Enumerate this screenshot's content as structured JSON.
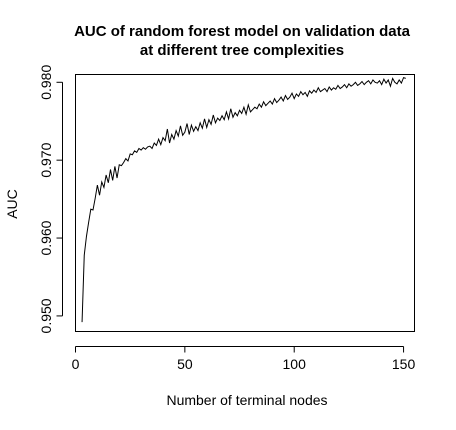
{
  "chart_data": {
    "type": "line",
    "title_lines": [
      "AUC of random forest model on validation data",
      "at different tree complexities"
    ],
    "xlabel": "Number of terminal nodes",
    "ylabel": "AUC",
    "xlim": [
      0,
      155
    ],
    "ylim": [
      0.948,
      0.981
    ],
    "x_ticks": [
      0,
      50,
      100,
      150
    ],
    "y_ticks": [
      0.95,
      0.96,
      0.97,
      0.98
    ],
    "y_tick_labels": [
      "0.950",
      "0.960",
      "0.970",
      "0.980"
    ],
    "grid": false,
    "legend": "none",
    "series": [
      {
        "x": [
          3,
          4,
          5,
          6,
          7,
          8,
          9,
          10,
          11,
          12,
          13,
          14,
          15,
          16,
          17,
          18,
          19,
          20,
          21,
          22,
          23,
          24,
          25,
          26,
          27,
          28,
          29,
          30,
          31,
          32,
          33,
          34,
          35,
          36,
          37,
          38,
          39,
          40,
          41,
          42,
          43,
          44,
          45,
          46,
          47,
          48,
          49,
          50,
          51,
          52,
          53,
          54,
          55,
          56,
          57,
          58,
          59,
          60,
          61,
          62,
          63,
          64,
          65,
          66,
          67,
          68,
          69,
          70,
          71,
          72,
          73,
          74,
          75,
          76,
          77,
          78,
          79,
          80,
          81,
          82,
          83,
          84,
          85,
          86,
          87,
          88,
          89,
          90,
          91,
          92,
          93,
          94,
          95,
          96,
          97,
          98,
          99,
          100,
          101,
          102,
          103,
          104,
          105,
          106,
          107,
          108,
          109,
          110,
          111,
          112,
          113,
          114,
          115,
          116,
          117,
          118,
          119,
          120,
          121,
          122,
          123,
          124,
          125,
          126,
          127,
          128,
          129,
          130,
          131,
          132,
          133,
          134,
          135,
          136,
          137,
          138,
          139,
          140,
          141,
          142,
          143,
          144,
          145,
          146,
          147,
          148,
          149,
          150,
          151
        ],
        "y": [
          0.9492,
          0.9578,
          0.9602,
          0.962,
          0.9637,
          0.9636,
          0.9651,
          0.9668,
          0.9655,
          0.9672,
          0.9665,
          0.9681,
          0.9671,
          0.9688,
          0.9674,
          0.9692,
          0.9677,
          0.9694,
          0.9693,
          0.9697,
          0.9702,
          0.9699,
          0.9708,
          0.9707,
          0.9712,
          0.971,
          0.9715,
          0.9713,
          0.9716,
          0.9714,
          0.9717,
          0.9718,
          0.9715,
          0.9722,
          0.9719,
          0.9727,
          0.972,
          0.9729,
          0.9725,
          0.974,
          0.9722,
          0.9733,
          0.9727,
          0.9738,
          0.9731,
          0.9744,
          0.9732,
          0.9736,
          0.9747,
          0.9733,
          0.9745,
          0.9737,
          0.9743,
          0.9738,
          0.9748,
          0.9741,
          0.9753,
          0.9742,
          0.9752,
          0.9746,
          0.9758,
          0.9748,
          0.9754,
          0.9751,
          0.9757,
          0.9752,
          0.9762,
          0.9753,
          0.9766,
          0.9755,
          0.9761,
          0.9757,
          0.9764,
          0.976,
          0.9768,
          0.9759,
          0.9771,
          0.9762,
          0.9765,
          0.9768,
          0.9766,
          0.9772,
          0.9768,
          0.9775,
          0.977,
          0.9773,
          0.9776,
          0.9772,
          0.9779,
          0.9774,
          0.9777,
          0.9781,
          0.9776,
          0.9783,
          0.9778,
          0.9781,
          0.9786,
          0.9779,
          0.9785,
          0.9782,
          0.9788,
          0.9784,
          0.9787,
          0.9782,
          0.9789,
          0.9786,
          0.979,
          0.9787,
          0.9793,
          0.9788,
          0.979,
          0.9792,
          0.9788,
          0.9794,
          0.979,
          0.9793,
          0.9791,
          0.9796,
          0.9792,
          0.9794,
          0.9797,
          0.9793,
          0.9798,
          0.9795,
          0.9797,
          0.98,
          0.9796,
          0.9798,
          0.9801,
          0.9797,
          0.98,
          0.9802,
          0.9798,
          0.9803,
          0.98,
          0.9799,
          0.9802,
          0.9797,
          0.9804,
          0.9799,
          0.9803,
          0.9795,
          0.9805,
          0.98,
          0.9798,
          0.9803,
          0.9799,
          0.9806,
          0.9805
        ]
      }
    ]
  }
}
